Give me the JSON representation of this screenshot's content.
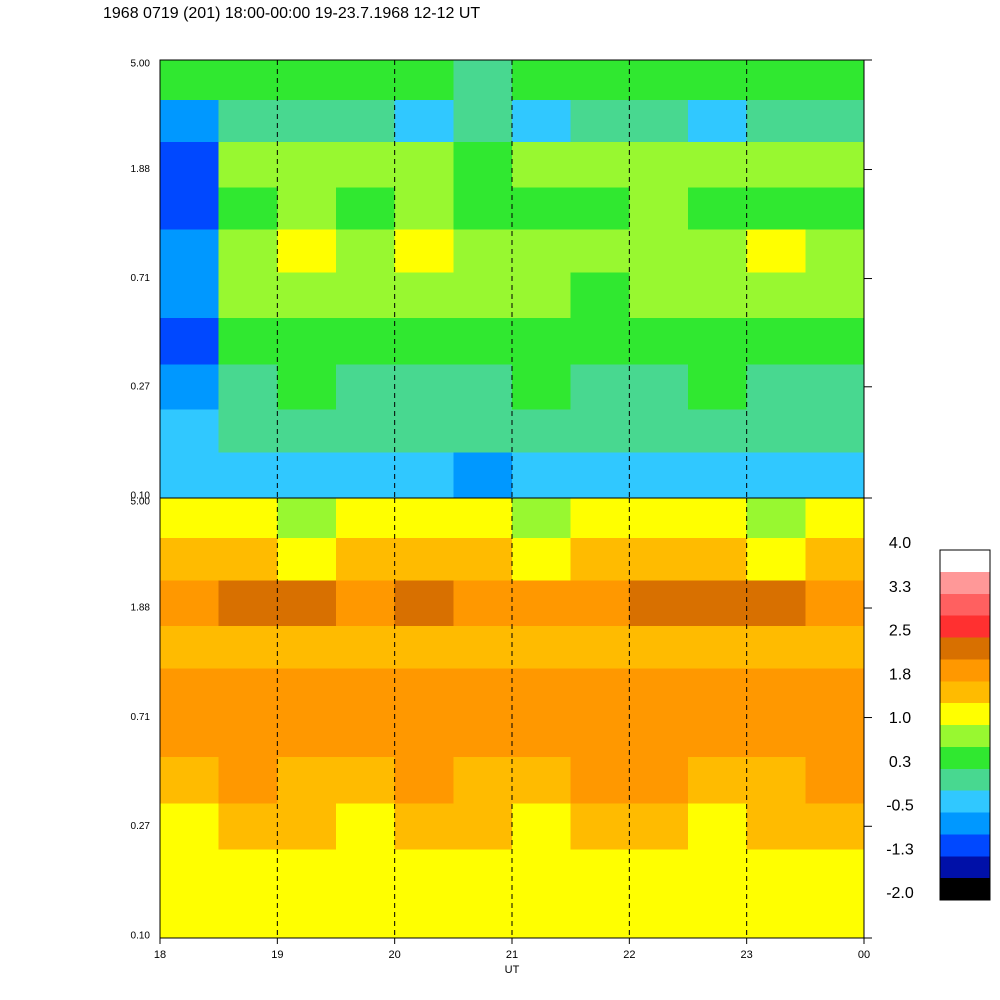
{
  "chart_data": {
    "type": "heatmap",
    "title": "1968 0719 (201) 18:00-00:00 19-23.7.1968  12-12 UT",
    "xlabel": "UT",
    "log_y": true,
    "xgrid_dashed": true,
    "xlim": [
      18,
      24
    ],
    "ylim": [
      0.1,
      5.0
    ],
    "xticks": [
      18,
      19,
      20,
      21,
      22,
      23,
      {
        "value": 24,
        "label": "00"
      }
    ],
    "yticks": [
      {
        "value": 0.1,
        "label": "0.10"
      },
      0.27,
      0.71,
      1.88,
      {
        "value": 5.0,
        "label": "5.00"
      }
    ],
    "x": [
      18,
      18.5,
      19,
      19.5,
      20,
      20.5,
      21,
      21.5,
      22,
      22.5,
      23,
      23.5,
      24
    ],
    "y": [
      0.1,
      0.15,
      0.22,
      0.33,
      0.5,
      0.75,
      1.1,
      1.6,
      2.4,
      3.5,
      5.0
    ],
    "panels": [
      {
        "z": [
          [
            -0.4,
            -0.5,
            -0.3,
            -0.4,
            -0.5,
            -0.6,
            -0.3,
            -0.4,
            -0.5,
            -0.3,
            -0.4,
            -0.5
          ],
          [
            -0.2,
            0.0,
            0.1,
            0.0,
            -0.1,
            0.0,
            0.1,
            0.0,
            -0.1,
            0.1,
            0.0,
            -0.1
          ],
          [
            -0.6,
            0.2,
            0.3,
            0.2,
            0.2,
            0.1,
            0.3,
            0.2,
            0.1,
            0.3,
            0.2,
            0.2
          ],
          [
            -0.9,
            0.4,
            0.5,
            0.6,
            0.5,
            0.4,
            0.6,
            0.5,
            0.4,
            0.6,
            0.5,
            0.4
          ],
          [
            -0.8,
            0.7,
            0.9,
            0.8,
            0.9,
            0.7,
            0.8,
            0.6,
            0.7,
            0.9,
            0.8,
            0.7
          ],
          [
            -0.7,
            0.8,
            1.0,
            0.9,
            1.0,
            0.9,
            0.8,
            0.7,
            0.8,
            0.9,
            1.0,
            0.9
          ],
          [
            -1.1,
            0.6,
            0.7,
            0.6,
            0.7,
            0.6,
            0.5,
            0.6,
            0.7,
            0.6,
            0.5,
            0.6
          ],
          [
            -1.2,
            0.9,
            0.8,
            0.7,
            0.8,
            0.6,
            0.9,
            0.8,
            0.9,
            0.7,
            0.8,
            0.7
          ],
          [
            -0.6,
            -0.1,
            0.1,
            0.0,
            -0.2,
            0.0,
            -0.3,
            0.0,
            0.1,
            -0.4,
            0.0,
            -0.1
          ],
          [
            0.3,
            0.4,
            0.3,
            0.4,
            0.3,
            0.2,
            0.3,
            0.4,
            0.3,
            0.3,
            0.4,
            0.3
          ]
        ]
      },
      {
        "z": [
          [
            1.1,
            1.2,
            1.0,
            1.1,
            1.2,
            1.0,
            1.1,
            1.2,
            1.1,
            1.0,
            1.2,
            1.1
          ],
          [
            1.2,
            1.3,
            1.1,
            1.2,
            1.3,
            1.2,
            1.1,
            1.3,
            1.2,
            1.1,
            1.3,
            1.2
          ],
          [
            1.3,
            1.5,
            1.4,
            1.3,
            1.5,
            1.4,
            1.3,
            1.5,
            1.4,
            1.3,
            1.4,
            1.5
          ],
          [
            1.6,
            1.8,
            1.7,
            1.6,
            1.9,
            1.7,
            1.6,
            1.8,
            1.9,
            1.6,
            1.5,
            1.8
          ],
          [
            1.9,
            2.0,
            2.1,
            1.9,
            2.0,
            1.9,
            1.8,
            2.0,
            2.1,
            2.0,
            1.9,
            2.0
          ],
          [
            1.8,
            1.9,
            2.0,
            1.9,
            1.8,
            1.9,
            1.8,
            1.9,
            2.0,
            2.1,
            1.9,
            1.8
          ],
          [
            1.5,
            1.6,
            1.5,
            1.7,
            1.6,
            1.5,
            1.6,
            1.5,
            1.7,
            1.6,
            1.5,
            1.6
          ],
          [
            2.1,
            2.2,
            2.2,
            2.1,
            2.2,
            2.1,
            2.0,
            2.1,
            2.2,
            2.3,
            2.2,
            2.1
          ],
          [
            1.4,
            1.5,
            1.3,
            1.4,
            1.5,
            1.4,
            1.3,
            1.4,
            1.5,
            1.4,
            1.3,
            1.4
          ],
          [
            1.0,
            1.1,
            0.9,
            1.0,
            1.1,
            1.0,
            0.9,
            1.0,
            1.1,
            1.0,
            0.9,
            1.0
          ]
        ]
      }
    ],
    "colorbar": {
      "bounds": [
        -2,
        -1.625,
        -1.25,
        -0.875,
        -0.5,
        -0.125,
        0.25,
        0.625,
        1,
        1.375,
        1.75,
        2.125,
        2.5,
        2.875,
        3.25,
        3.625,
        4
      ],
      "colors": [
        "#000000",
        "#0010a8",
        "#0048ff",
        "#0098ff",
        "#30c8ff",
        "#48d890",
        "#30e830",
        "#98f830",
        "#ffff00",
        "#ffbb00",
        "#ff9800",
        "#d87000",
        "#ff3030",
        "#ff6060",
        "#ff9898",
        "#ffffff"
      ],
      "ticks": [
        {
          "value": -2,
          "label": "-2.0"
        },
        {
          "value": -1.25,
          "label": "-1.3"
        },
        {
          "value": -0.5,
          "label": "-0.5"
        },
        {
          "value": 0.25,
          "label": "0.3"
        },
        {
          "value": 1,
          "label": "1.0"
        },
        {
          "value": 1.75,
          "label": "1.8"
        },
        {
          "value": 2.5,
          "label": "2.5"
        },
        {
          "value": 3.25,
          "label": "3.3"
        },
        {
          "value": 4,
          "label": "4.0"
        }
      ]
    }
  }
}
